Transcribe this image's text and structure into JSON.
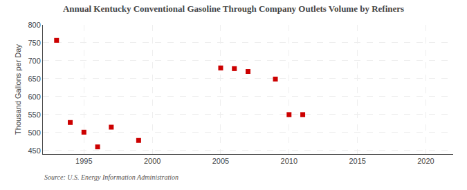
{
  "chart_data": {
    "type": "scatter",
    "title": "Annual Kentucky Conventional Gasoline Through Company Outlets Volume by Refiners",
    "ylabel": "Thousand Gallons per Day",
    "source": "Source: U.S. Energy Information Administration",
    "x": [
      1993,
      1994,
      1995,
      1996,
      1997,
      1999,
      2005,
      2006,
      2007,
      2009,
      2010,
      2011
    ],
    "values": [
      757,
      528,
      501,
      460,
      515,
      478,
      680,
      678,
      670,
      649,
      550,
      550
    ],
    "color": "#cc0000",
    "marker": "square",
    "xlim": [
      1992,
      2022
    ],
    "ylim": [
      440,
      800
    ],
    "xticks": [
      1995,
      2000,
      2005,
      2010,
      2015,
      2020
    ],
    "yticks": [
      450,
      500,
      550,
      600,
      650,
      700,
      750,
      800
    ],
    "grid": true
  }
}
